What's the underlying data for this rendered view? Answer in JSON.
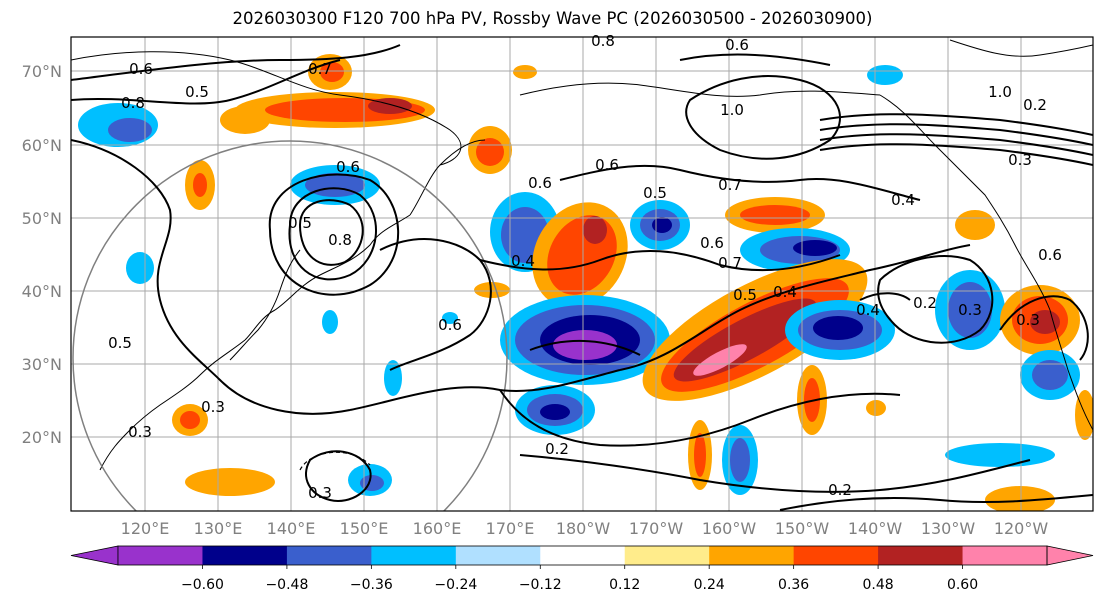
{
  "title": "2026030300 F120 700 hPa PV, Rossby Wave PC (2026030500 - 2026030900)",
  "map": {
    "lat_labels": [
      "70°N",
      "60°N",
      "50°N",
      "40°N",
      "30°N",
      "20°N"
    ],
    "lon_labels": [
      "120°E",
      "130°E",
      "140°E",
      "150°E",
      "160°E",
      "170°E",
      "180°W",
      "170°W",
      "160°W",
      "150°W",
      "140°W",
      "130°W",
      "120°W"
    ],
    "contour_labels": [
      "0.8",
      "0.6",
      "0.7",
      "0.6",
      "0.5",
      "0.8",
      "1.0",
      "1.0",
      "0.6",
      "0.7",
      "0.6",
      "0.5",
      "0.6",
      "0.4",
      "0.8",
      "0.6",
      "0.5",
      "0.6",
      "0.7",
      "0.4",
      "0.5",
      "0.4",
      "0.4",
      "0.3",
      "0.2",
      "0.3",
      "0.3",
      "0.2",
      "0.2",
      "0.3",
      "0.5",
      "0.6",
      "0.3",
      "0.3",
      "0.2"
    ]
  },
  "colorbar": {
    "colors": [
      "#9932CC",
      "#00008B",
      "#3A5FCD",
      "#00BFFF",
      "#B0E0FF",
      "#FFFFFF",
      "#FFEC8B",
      "#FFA500",
      "#FF4500",
      "#B22222",
      "#FF82AB"
    ],
    "tick_labels": [
      "−0.60",
      "−0.48",
      "−0.36",
      "−0.24",
      "−0.12",
      "0.12",
      "0.24",
      "0.36",
      "0.48",
      "0.60"
    ]
  }
}
